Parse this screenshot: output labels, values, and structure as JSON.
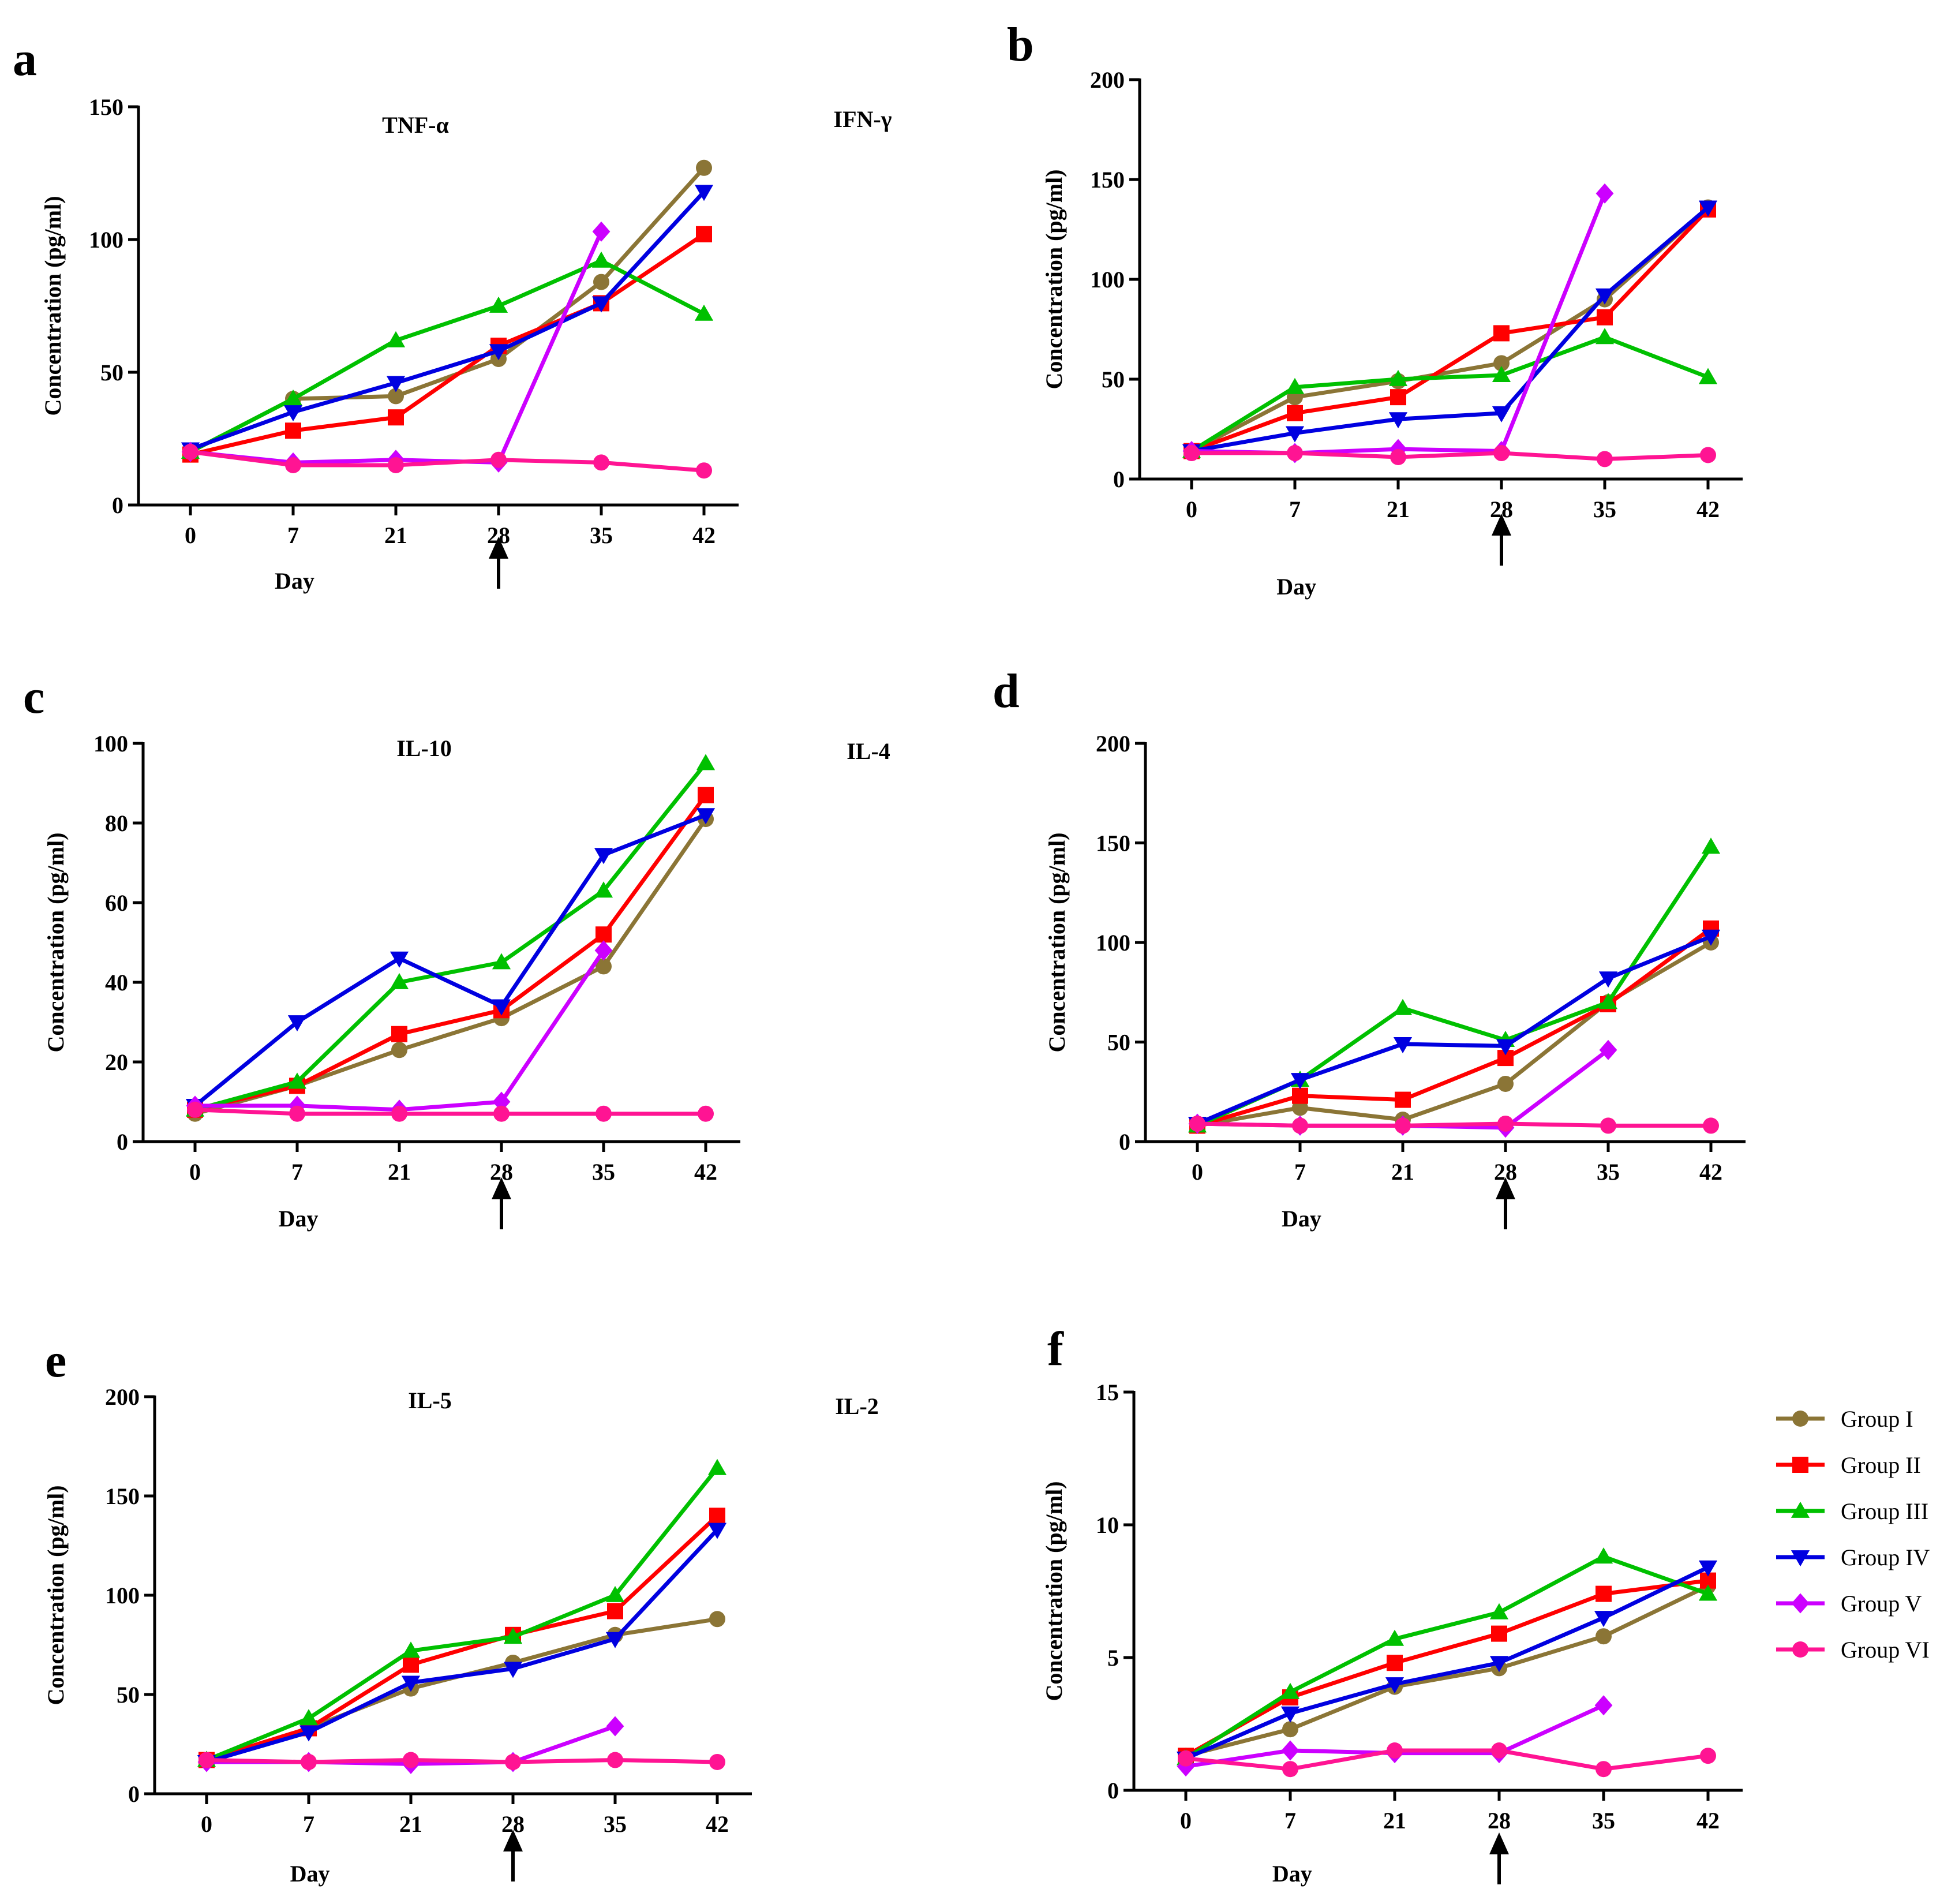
{
  "legend": {
    "items": [
      {
        "label": "Group I",
        "color": "#8B7536",
        "marker": "circle"
      },
      {
        "label": "Group II",
        "color": "#FF0000",
        "marker": "square"
      },
      {
        "label": "Group III",
        "color": "#00C000",
        "marker": "triangle-up"
      },
      {
        "label": "Group IV",
        "color": "#0000E0",
        "marker": "triangle-down"
      },
      {
        "label": "Group V",
        "color": "#CC00FF",
        "marker": "diamond"
      },
      {
        "label": "Group VI",
        "color": "#FF1493",
        "marker": "circle"
      }
    ]
  },
  "chart_data": [
    {
      "type": "line",
      "letter": "a",
      "title": "TNF-α",
      "xlabel": "Day",
      "ylabel": "Concentration (pg/ml)",
      "categories": [
        "0",
        "7",
        "21",
        "28",
        "35",
        "42"
      ],
      "ylim": [
        0,
        150
      ],
      "yticks": [
        0,
        50,
        100,
        150
      ],
      "arrow_at": "28",
      "series": [
        {
          "name": "Group I",
          "values": [
            20,
            40,
            41,
            55,
            84,
            127
          ]
        },
        {
          "name": "Group II",
          "values": [
            19,
            28,
            33,
            60,
            76,
            102
          ]
        },
        {
          "name": "Group III",
          "values": [
            20,
            40,
            62,
            75,
            92,
            72
          ]
        },
        {
          "name": "Group IV",
          "values": [
            21,
            35,
            46,
            58,
            76,
            118
          ]
        },
        {
          "name": "Group V",
          "values": [
            20,
            16,
            17,
            16,
            103,
            null
          ]
        },
        {
          "name": "Group VI",
          "values": [
            20,
            15,
            15,
            17,
            16,
            13
          ]
        }
      ]
    },
    {
      "type": "line",
      "letter": "b",
      "title": "IFN-γ",
      "xlabel": "Day",
      "ylabel": "Concentration (pg/ml)",
      "categories": [
        "0",
        "7",
        "21",
        "28",
        "35",
        "42"
      ],
      "ylim": [
        0,
        200
      ],
      "yticks": [
        0,
        50,
        100,
        150,
        200
      ],
      "arrow_at": "28",
      "series": [
        {
          "name": "Group I",
          "values": [
            14,
            41,
            49,
            58,
            90,
            136
          ]
        },
        {
          "name": "Group II",
          "values": [
            14,
            33,
            41,
            73,
            81,
            135
          ]
        },
        {
          "name": "Group III",
          "values": [
            14,
            46,
            50,
            52,
            71,
            51
          ]
        },
        {
          "name": "Group IV",
          "values": [
            14,
            23,
            30,
            33,
            92,
            136
          ]
        },
        {
          "name": "Group V",
          "values": [
            14,
            13,
            15,
            14,
            143,
            null
          ]
        },
        {
          "name": "Group VI",
          "values": [
            13,
            13,
            11,
            13,
            10,
            12
          ]
        }
      ]
    },
    {
      "type": "line",
      "letter": "c",
      "title": "IL-10",
      "xlabel": "Day",
      "ylabel": "Concentration (pg/ml)",
      "categories": [
        "0",
        "7",
        "21",
        "28",
        "35",
        "42"
      ],
      "ylim": [
        0,
        100
      ],
      "yticks": [
        0,
        20,
        40,
        60,
        80,
        100
      ],
      "arrow_at": "28",
      "series": [
        {
          "name": "Group I",
          "values": [
            7,
            14,
            23,
            31,
            44,
            81
          ]
        },
        {
          "name": "Group II",
          "values": [
            8,
            14,
            27,
            33,
            52,
            87
          ]
        },
        {
          "name": "Group III",
          "values": [
            8,
            15,
            40,
            45,
            63,
            95
          ]
        },
        {
          "name": "Group IV",
          "values": [
            9,
            30,
            46,
            34,
            72,
            82
          ]
        },
        {
          "name": "Group V",
          "values": [
            9,
            9,
            8,
            10,
            48,
            null
          ]
        },
        {
          "name": "Group VI",
          "values": [
            8,
            7,
            7,
            7,
            7,
            7
          ]
        }
      ]
    },
    {
      "type": "line",
      "letter": "d",
      "title": "IL-4",
      "xlabel": "Day",
      "ylabel": "Concentration (pg/ml)",
      "categories": [
        "0",
        "7",
        "21",
        "28",
        "35",
        "42"
      ],
      "ylim": [
        0,
        200
      ],
      "yticks": [
        0,
        50,
        100,
        150,
        200
      ],
      "arrow_at": "28",
      "series": [
        {
          "name": "Group I",
          "values": [
            8,
            17,
            11,
            29,
            70,
            100
          ]
        },
        {
          "name": "Group II",
          "values": [
            8,
            23,
            21,
            42,
            69,
            107
          ]
        },
        {
          "name": "Group III",
          "values": [
            8,
            31,
            67,
            51,
            70,
            148
          ]
        },
        {
          "name": "Group IV",
          "values": [
            9,
            31,
            49,
            48,
            82,
            103
          ]
        },
        {
          "name": "Group V",
          "values": [
            9,
            8,
            8,
            7,
            46,
            null
          ]
        },
        {
          "name": "Group VI",
          "values": [
            9,
            8,
            8,
            9,
            8,
            8
          ]
        }
      ]
    },
    {
      "type": "line",
      "letter": "e",
      "title": "IL-5",
      "xlabel": "Day",
      "ylabel": "Concentration (pg/ml)",
      "categories": [
        "0",
        "7",
        "21",
        "28",
        "35",
        "42"
      ],
      "ylim": [
        0,
        200
      ],
      "yticks": [
        0,
        50,
        100,
        150,
        200
      ],
      "arrow_at": "28",
      "series": [
        {
          "name": "Group I",
          "values": [
            17,
            33,
            53,
            66,
            80,
            88
          ]
        },
        {
          "name": "Group II",
          "values": [
            17,
            33,
            65,
            80,
            92,
            140
          ]
        },
        {
          "name": "Group III",
          "values": [
            17,
            38,
            72,
            79,
            100,
            164
          ]
        },
        {
          "name": "Group IV",
          "values": [
            16,
            31,
            56,
            63,
            78,
            133
          ]
        },
        {
          "name": "Group V",
          "values": [
            16,
            16,
            15,
            16,
            34,
            null
          ]
        },
        {
          "name": "Group VI",
          "values": [
            17,
            16,
            17,
            16,
            17,
            16
          ]
        }
      ]
    },
    {
      "type": "line",
      "letter": "f",
      "title": "IL-2",
      "xlabel": "Day",
      "ylabel": "Concentration (pg/ml)",
      "categories": [
        "0",
        "7",
        "21",
        "28",
        "35",
        "42"
      ],
      "ylim": [
        0,
        15
      ],
      "yticks": [
        0,
        5,
        10,
        15
      ],
      "arrow_at": "28",
      "series": [
        {
          "name": "Group I",
          "values": [
            1.3,
            2.3,
            3.9,
            4.6,
            5.8,
            7.7
          ]
        },
        {
          "name": "Group II",
          "values": [
            1.3,
            3.5,
            4.8,
            5.9,
            7.4,
            7.9
          ]
        },
        {
          "name": "Group III",
          "values": [
            1.2,
            3.7,
            5.7,
            6.7,
            8.8,
            7.4
          ]
        },
        {
          "name": "Group IV",
          "values": [
            1.2,
            2.9,
            4.0,
            4.8,
            6.5,
            8.4
          ]
        },
        {
          "name": "Group V",
          "values": [
            0.9,
            1.5,
            1.4,
            1.4,
            3.2,
            null
          ]
        },
        {
          "name": "Group VI",
          "values": [
            1.2,
            0.8,
            1.5,
            1.5,
            0.8,
            1.3
          ]
        }
      ]
    }
  ]
}
